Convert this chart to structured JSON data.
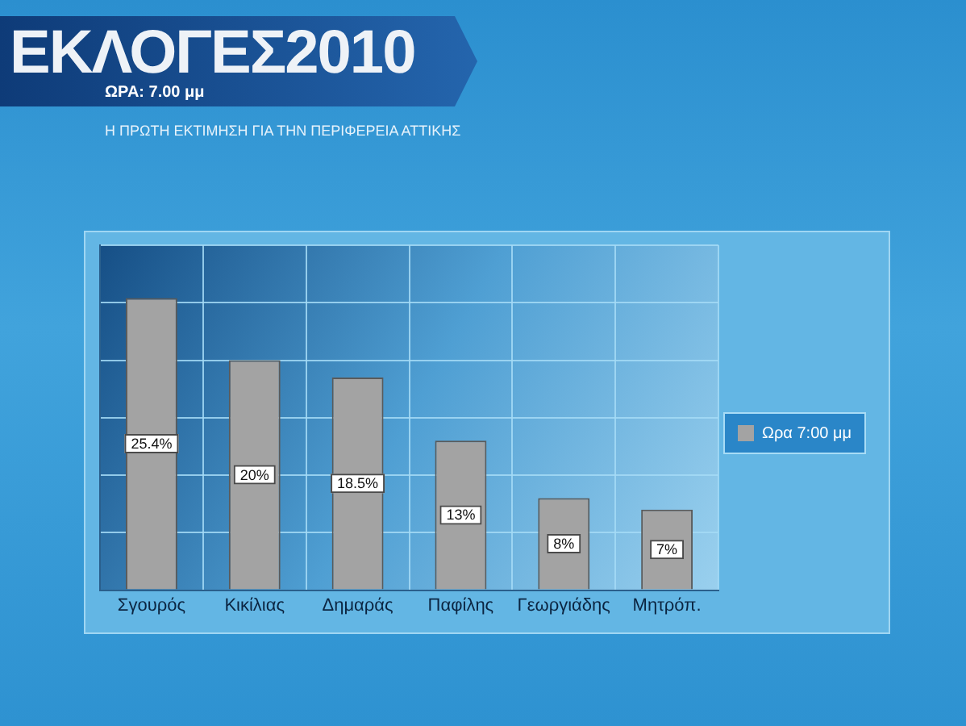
{
  "chart_data": {
    "type": "bar",
    "title": "ΕΚΛΟΓΕΣ2010",
    "subtitle": "Η ΠΡΩΤΗ ΕΚΤΙΜΗΣΗ ΓΙΑ ΤΗΝ ΠΕΡΙΦΕΡΕΙΑ ΑΤΤΙΚΗΣ",
    "annotations": [
      "ΩΡΑ: 7.00 μμ"
    ],
    "categories": [
      "Σγουρός",
      "Κικίλιας",
      "Δημαράς",
      "Παφίλης",
      "Γεωργιάδης",
      "Μητρόπ."
    ],
    "series": [
      {
        "name": "Ωρα 7:00 μμ",
        "color": "#a3a3a3",
        "values": [
          25.4,
          20,
          18.5,
          13,
          8,
          7
        ],
        "value_labels": [
          "25.4%",
          "20%",
          "18.5%",
          "13%",
          "8%",
          "7%"
        ]
      }
    ],
    "ylim": [
      0,
      30
    ],
    "yticks": [
      {
        "value": 0,
        "label": null
      },
      {
        "value": 5,
        "label": null
      },
      {
        "value": 10,
        "label": null
      },
      {
        "value": 15,
        "label": null
      },
      {
        "value": 20,
        "label": null
      },
      {
        "value": 25,
        "label": null
      },
      {
        "value": 30,
        "label": null
      }
    ],
    "grid": true,
    "legend": "right",
    "tick_labels": "x"
  }
}
